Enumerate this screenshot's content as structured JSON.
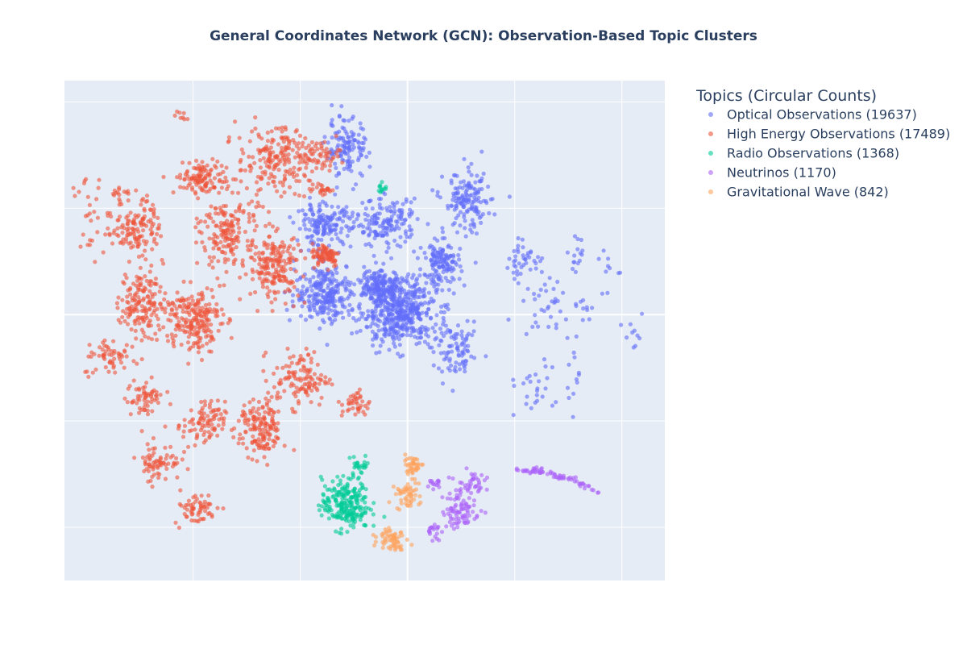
{
  "chart_data": {
    "type": "scatter",
    "title": "General Coordinates Network (GCN): Observation-Based Topic Clusters",
    "xlabel": "",
    "ylabel": "",
    "xlim": [
      -11,
      17
    ],
    "ylim": [
      -12.5,
      11
    ],
    "grid": true,
    "legend": {
      "title": "Topics (Circular Counts)",
      "placement": "right"
    },
    "series": [
      {
        "name": "Optical Observations (19637)",
        "color": "#636efa",
        "clusters": [
          {
            "cx": 4.6,
            "cy": 0.2,
            "sx": 1.6,
            "sy": 1.5,
            "n": 520
          },
          {
            "cx": 2.2,
            "cy": 7.8,
            "sx": 0.9,
            "sy": 1.3,
            "n": 130
          },
          {
            "cx": 1.1,
            "cy": 4.2,
            "sx": 1.2,
            "sy": 0.9,
            "n": 160
          },
          {
            "cx": 1.2,
            "cy": 1.0,
            "sx": 1.3,
            "sy": 1.3,
            "n": 260
          },
          {
            "cx": 4.0,
            "cy": 4.3,
            "sx": 1.3,
            "sy": 1.0,
            "n": 160
          },
          {
            "cx": 7.8,
            "cy": 5.3,
            "sx": 1.0,
            "sy": 1.3,
            "n": 150
          },
          {
            "cx": 6.6,
            "cy": 2.4,
            "sx": 0.8,
            "sy": 0.9,
            "n": 130
          },
          {
            "cx": 3.7,
            "cy": 1.4,
            "sx": 0.8,
            "sy": 0.7,
            "n": 140
          },
          {
            "cx": 7.3,
            "cy": -1.8,
            "sx": 1.0,
            "sy": 1.1,
            "n": 90
          },
          {
            "cx": 10.4,
            "cy": 2.6,
            "sx": 0.9,
            "sy": 0.7,
            "n": 40
          },
          {
            "cx": 11.6,
            "cy": 0.5,
            "sx": 1.1,
            "sy": 1.4,
            "n": 35
          },
          {
            "cx": 10.7,
            "cy": -3.5,
            "sx": 1.0,
            "sy": 1.1,
            "n": 25
          },
          {
            "cx": 12.8,
            "cy": 2.8,
            "sx": 0.6,
            "sy": 1.0,
            "n": 15
          },
          {
            "cx": 12.7,
            "cy": -2.3,
            "sx": 0.5,
            "sy": 1.6,
            "n": 14
          },
          {
            "cx": 14.3,
            "cy": 1.8,
            "sx": 0.6,
            "sy": 1.4,
            "n": 10
          },
          {
            "cx": 13.3,
            "cy": 0.2,
            "sx": 0.4,
            "sy": 0.5,
            "n": 8
          },
          {
            "cx": 15.6,
            "cy": -0.6,
            "sx": 0.5,
            "sy": 1.2,
            "n": 10
          }
        ]
      },
      {
        "name": "High Energy Observations (17489)",
        "color": "#ef553b",
        "clusters": [
          {
            "cx": -5.0,
            "cy": -0.2,
            "sx": 1.2,
            "sy": 1.4,
            "n": 220
          },
          {
            "cx": -3.3,
            "cy": 3.9,
            "sx": 1.2,
            "sy": 1.9,
            "n": 190
          },
          {
            "cx": -1.2,
            "cy": 2.3,
            "sx": 1.1,
            "sy": 1.4,
            "n": 180
          },
          {
            "cx": -1.2,
            "cy": 7.3,
            "sx": 1.6,
            "sy": 1.4,
            "n": 180
          },
          {
            "cx": -7.4,
            "cy": 0.6,
            "sx": 0.9,
            "sy": 1.5,
            "n": 160
          },
          {
            "cx": -7.6,
            "cy": 4.2,
            "sx": 1.0,
            "sy": 1.2,
            "n": 130
          },
          {
            "cx": -4.6,
            "cy": 6.4,
            "sx": 1.1,
            "sy": 0.7,
            "n": 110
          },
          {
            "cx": -1.8,
            "cy": -5.4,
            "sx": 0.9,
            "sy": 1.3,
            "n": 150
          },
          {
            "cx": -4.5,
            "cy": -5.2,
            "sx": 0.9,
            "sy": 1.0,
            "n": 90
          },
          {
            "cx": 0.0,
            "cy": -3.0,
            "sx": 1.2,
            "sy": 1.2,
            "n": 120
          },
          {
            "cx": 1.2,
            "cy": 2.8,
            "sx": 0.6,
            "sy": 0.5,
            "n": 80
          },
          {
            "cx": -8.8,
            "cy": -2.0,
            "sx": 1.2,
            "sy": 0.8,
            "n": 60
          },
          {
            "cx": -6.6,
            "cy": -6.9,
            "sx": 0.9,
            "sy": 0.8,
            "n": 70
          },
          {
            "cx": -4.9,
            "cy": -9.1,
            "sx": 0.9,
            "sy": 0.7,
            "n": 60
          },
          {
            "cx": 0.8,
            "cy": 7.5,
            "sx": 1.0,
            "sy": 0.6,
            "n": 60
          },
          {
            "cx": 2.6,
            "cy": -4.2,
            "sx": 0.6,
            "sy": 0.6,
            "n": 40
          },
          {
            "cx": -9.8,
            "cy": 4.5,
            "sx": 0.8,
            "sy": 2.0,
            "n": 30
          },
          {
            "cx": -8.5,
            "cy": 5.8,
            "sx": 0.4,
            "sy": 0.3,
            "n": 12
          },
          {
            "cx": -5.6,
            "cy": 9.3,
            "sx": 0.3,
            "sy": 0.3,
            "n": 8
          },
          {
            "cx": 1.0,
            "cy": 5.9,
            "sx": 0.5,
            "sy": 0.2,
            "n": 25
          },
          {
            "cx": -7.3,
            "cy": -4.0,
            "sx": 0.8,
            "sy": 0.9,
            "n": 60
          }
        ]
      },
      {
        "name": "Radio Observations (1368)",
        "color": "#00cc96",
        "clusters": [
          {
            "cx": 2.1,
            "cy": -8.9,
            "sx": 1.0,
            "sy": 1.1,
            "n": 230
          },
          {
            "cx": 2.8,
            "cy": -7.1,
            "sx": 0.4,
            "sy": 0.5,
            "n": 25
          },
          {
            "cx": 3.8,
            "cy": 6.0,
            "sx": 0.2,
            "sy": 0.3,
            "n": 12
          }
        ]
      },
      {
        "name": "Neutrinos (1170)",
        "color": "#ab63fa",
        "clusters": [
          {
            "cx": 7.5,
            "cy": -9.2,
            "sx": 0.8,
            "sy": 0.8,
            "n": 80
          },
          {
            "cx": 7.9,
            "cy": -7.9,
            "sx": 0.6,
            "sy": 0.5,
            "n": 40
          },
          {
            "cx": 6.2,
            "cy": -10.2,
            "sx": 0.3,
            "sy": 0.4,
            "n": 20
          },
          {
            "cx": 6.2,
            "cy": -7.9,
            "sx": 0.3,
            "sy": 0.3,
            "n": 15
          }
        ]
      },
      {
        "name": "Gravitational Wave (842)",
        "color": "#ffa15a",
        "clusters": [
          {
            "cx": 5.0,
            "cy": -8.5,
            "sx": 0.5,
            "sy": 0.6,
            "n": 50
          },
          {
            "cx": 5.2,
            "cy": -7.1,
            "sx": 0.5,
            "sy": 0.4,
            "n": 40
          },
          {
            "cx": 4.3,
            "cy": -10.5,
            "sx": 0.6,
            "sy": 0.5,
            "n": 60
          }
        ]
      }
    ],
    "neutrino_arc": {
      "x_from": 10.0,
      "x_to": 14.0,
      "n": 70
    }
  }
}
